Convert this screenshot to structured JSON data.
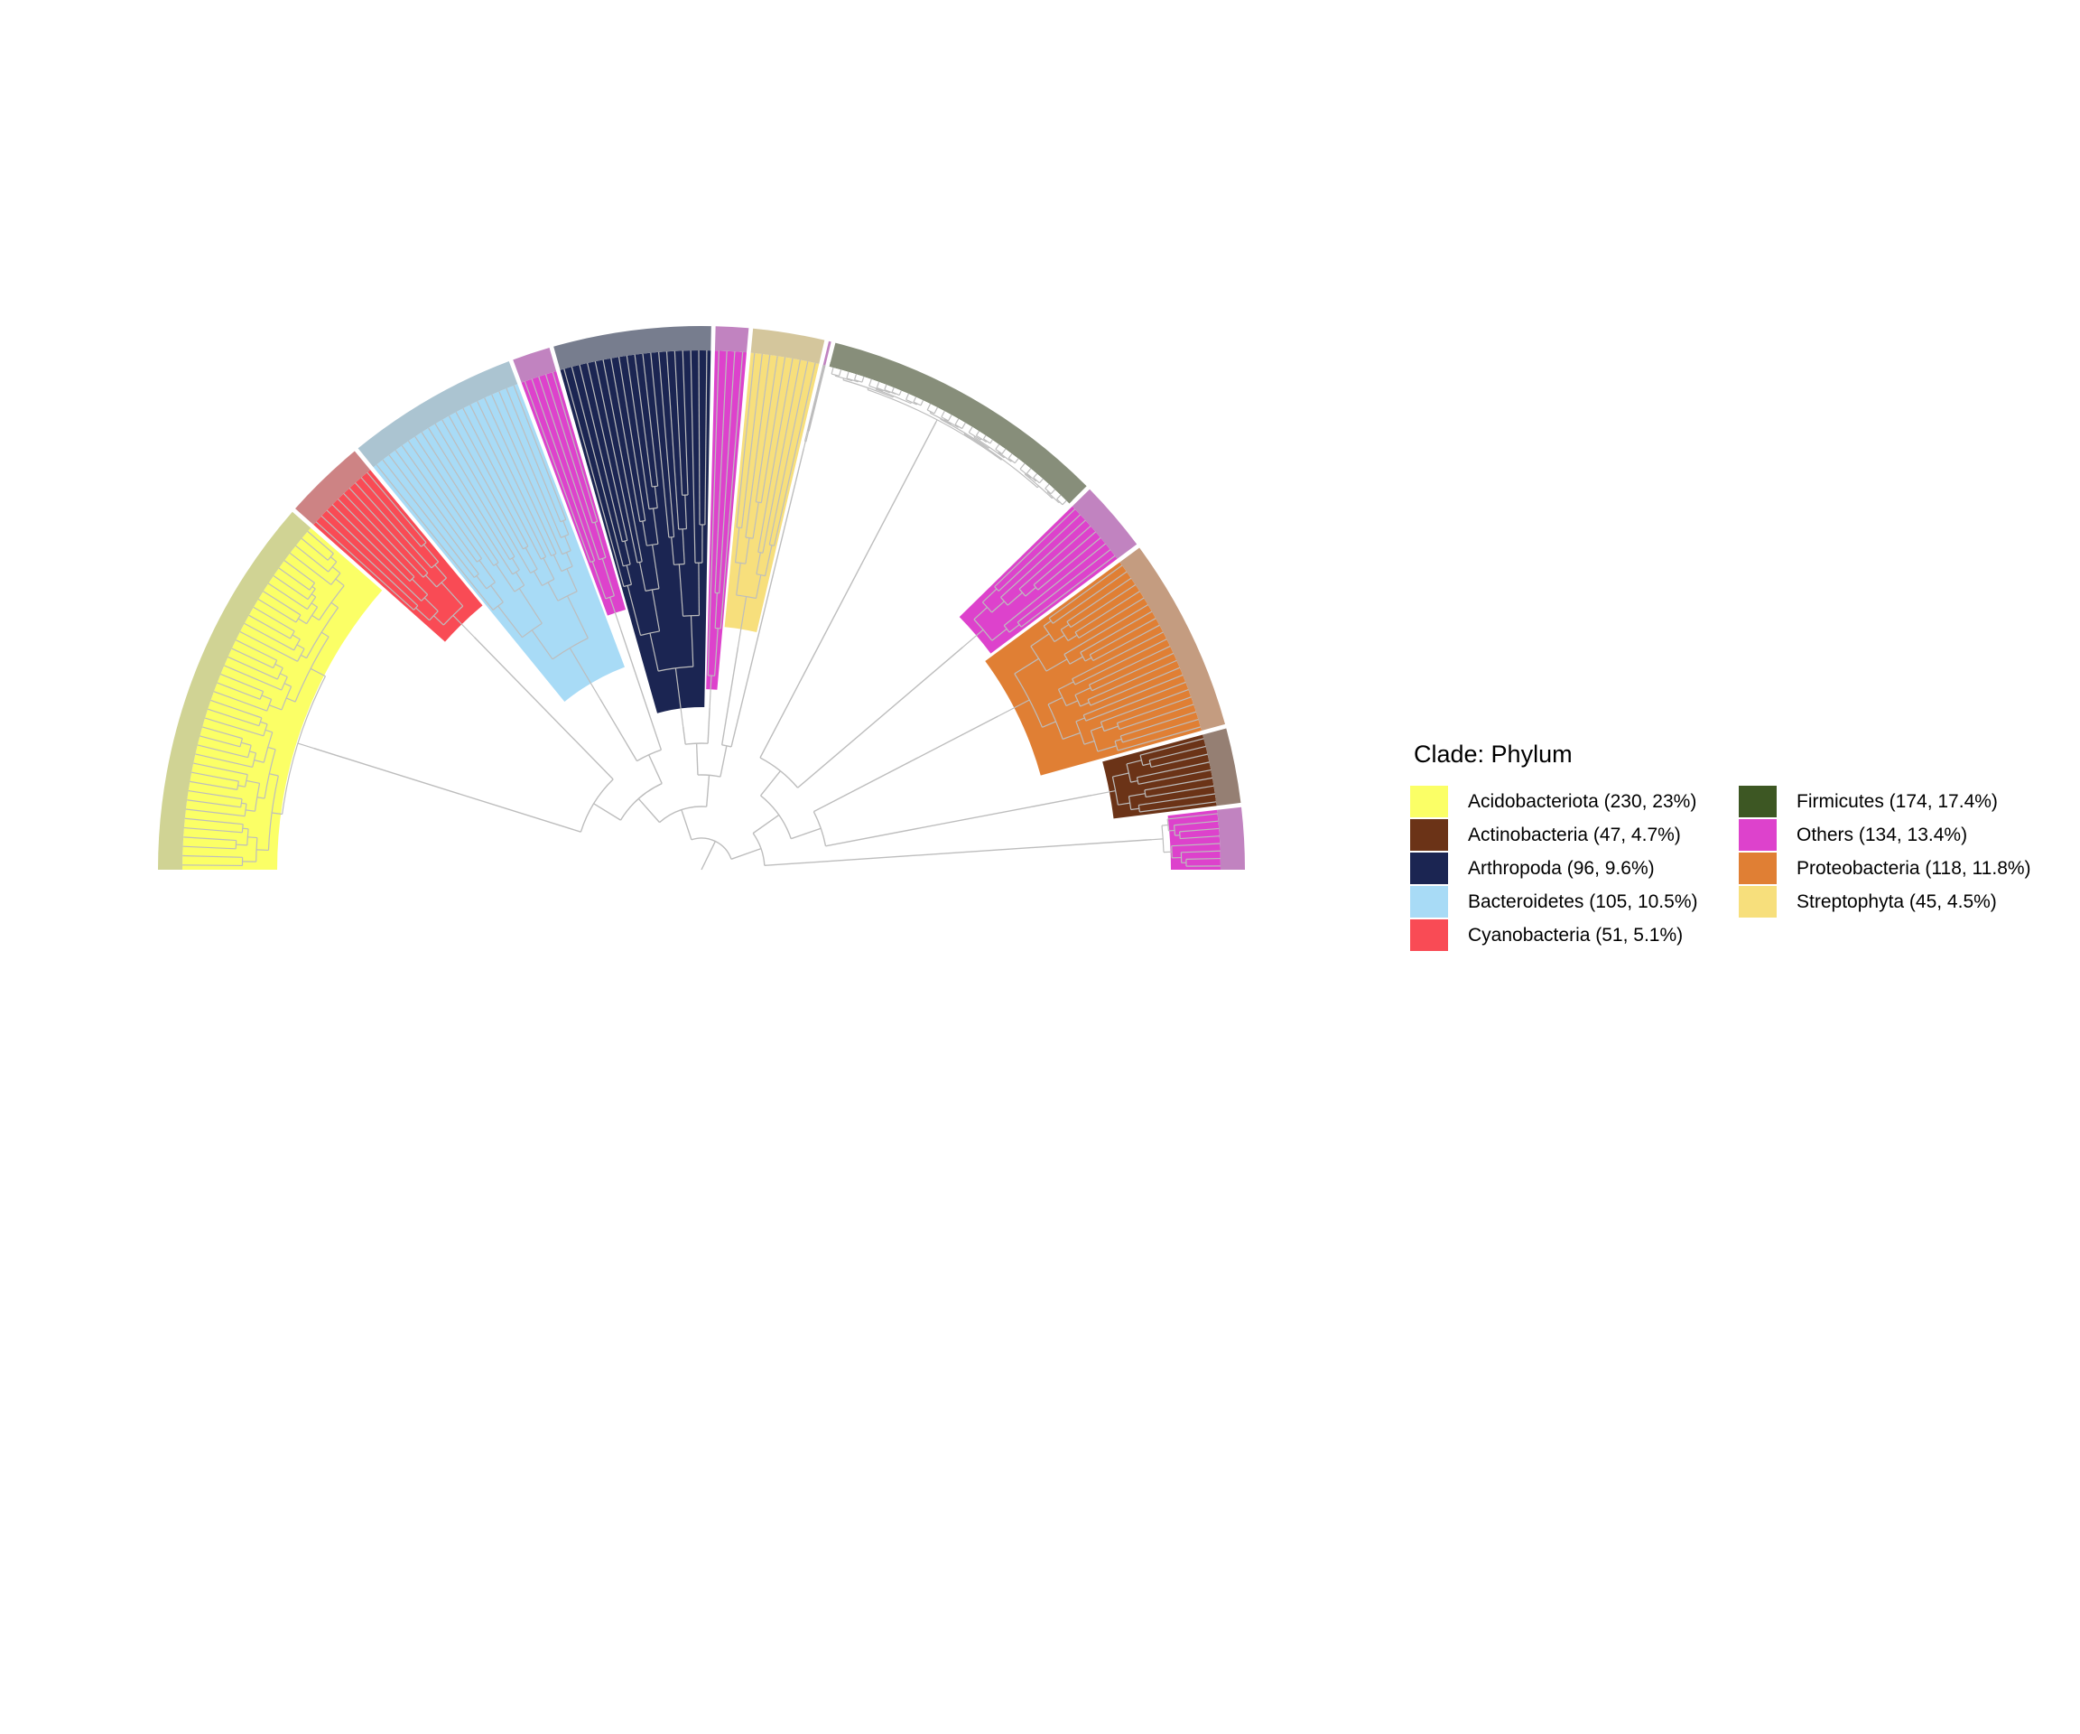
{
  "legend": {
    "title": "Clade: Phylum",
    "items": [
      {
        "label": "Acidobacteriota (230, 23%)",
        "color": "#fbff66"
      },
      {
        "label": "Actinobacteria (47, 4.7%)",
        "color": "#6b3317"
      },
      {
        "label": "Arthropoda (96, 9.6%)",
        "color": "#1b2552"
      },
      {
        "label": "Bacteroidetes (105, 10.5%)",
        "color": "#a8dbf6"
      },
      {
        "label": "Cyanobacteria (51, 5.1%)",
        "color": "#f94b55"
      },
      {
        "label": "Firmicutes (174, 17.4%)",
        "color": "#3d5723"
      },
      {
        "label": "Others (134, 13.4%)",
        "color": "#dd42cc"
      },
      {
        "label": "Proteobacteria (118, 11.8%)",
        "color": "#e07f34"
      },
      {
        "label": "Streptophyta (45, 4.5%)",
        "color": "#f7df7c"
      }
    ]
  },
  "tree": {
    "layout": "half-circular",
    "clades": [
      {
        "phylum": "Acidobacteriota",
        "color": "#fbff66",
        "ring_color": "#d0d394",
        "tips": 230
      },
      {
        "phylum": "Cyanobacteria",
        "color": "#f94b55",
        "ring_color": "#cd8384",
        "tips": 51
      },
      {
        "phylum": "Bacteroidetes",
        "color": "#a8dbf6",
        "ring_color": "#abc4d1",
        "tips": 105
      },
      {
        "phylum": "Others",
        "color": "#dd42cc",
        "ring_color": "#c183c0",
        "tips": 25
      },
      {
        "phylum": "Arthropoda",
        "color": "#1b2552",
        "ring_color": "#777d8e",
        "tips": 96
      },
      {
        "phylum": "Others",
        "color": "#dd42cc",
        "ring_color": "#c183c0",
        "tips": 22
      },
      {
        "phylum": "Streptophyta",
        "color": "#f7df7c",
        "ring_color": "#d4c69c",
        "tips": 45
      },
      {
        "phylum": "Others",
        "color": "#dd42cc",
        "ring_color": "#c183c0",
        "tips": 4
      },
      {
        "phylum": "Firmicutes",
        "color": "#3d5723",
        "ring_color": "#878e7a",
        "tips": 174
      },
      {
        "phylum": "Others",
        "color": "#dd42cc",
        "ring_color": "#c183c0",
        "tips": 45
      },
      {
        "phylum": "Proteobacteria",
        "color": "#e07f34",
        "ring_color": "#c49c80",
        "tips": 118
      },
      {
        "phylum": "Actinobacteria",
        "color": "#6b3317",
        "ring_color": "#957f73",
        "tips": 47
      },
      {
        "phylum": "Others",
        "color": "#dd42cc",
        "ring_color": "#c183c0",
        "tips": 38
      }
    ]
  }
}
